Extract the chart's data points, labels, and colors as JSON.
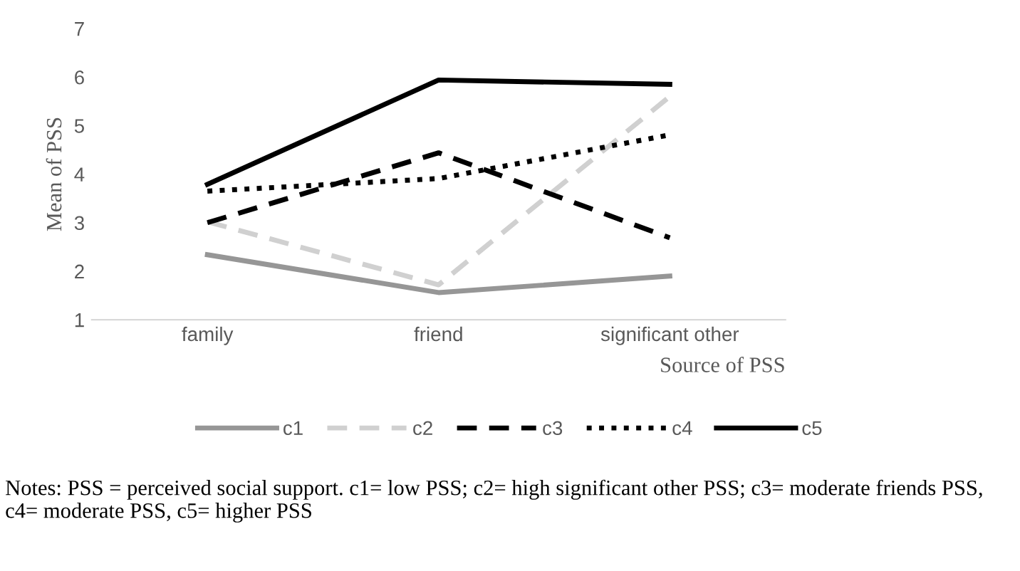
{
  "chart_data": {
    "type": "line",
    "ylabel": "Mean of PSS",
    "xlabel": "Source of PSS",
    "categories": [
      "family",
      "friend",
      "significant other"
    ],
    "series": [
      {
        "name": "c1",
        "color": "#969696",
        "line_style": "solid",
        "values": [
          2.34,
          1.56,
          1.9
        ]
      },
      {
        "name": "c2",
        "color": "#d0d0d0",
        "line_style": "dashed",
        "values": [
          3.02,
          1.72,
          5.6
        ]
      },
      {
        "name": "c3",
        "color": "#000000",
        "line_style": "dashed",
        "values": [
          3.0,
          4.44,
          2.69
        ]
      },
      {
        "name": "c4",
        "color": "#000000",
        "line_style": "dotted",
        "values": [
          3.65,
          3.91,
          4.81
        ]
      },
      {
        "name": "c5",
        "color": "#000000",
        "line_style": "solid",
        "values": [
          3.79,
          5.94,
          5.85
        ]
      }
    ],
    "ylim": [
      1,
      7
    ],
    "yticks": [
      1,
      2,
      3,
      4,
      5,
      6,
      7
    ],
    "grid": false,
    "legend": "bottom",
    "annotations": [
      "Notes: PSS = perceived social support. c1= low PSS; c2= high significant other PSS; c3= moderate friends PSS, c4= moderate PSS, c5= higher PSS"
    ]
  }
}
